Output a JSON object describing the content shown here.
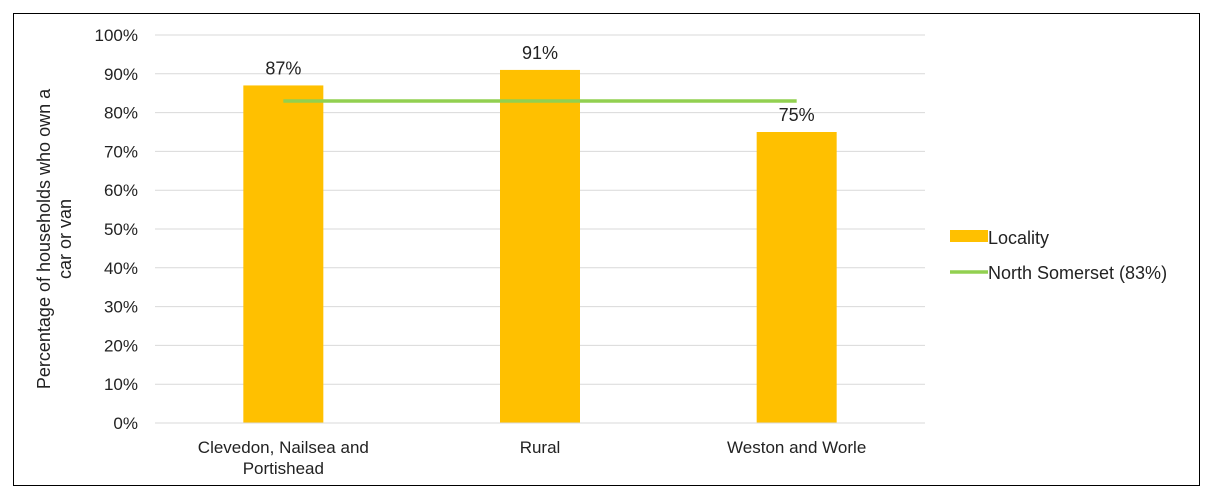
{
  "chart_data": {
    "type": "bar",
    "categories": [
      "Clevedon, Nailsea and Portishead",
      "Rural",
      "Weston and Worle"
    ],
    "category_lines": [
      [
        "Clevedon, Nailsea and",
        "Portishead"
      ],
      [
        "Rural"
      ],
      [
        "Weston and Worle"
      ]
    ],
    "series": [
      {
        "name": "Locality",
        "type": "bar",
        "values": [
          87,
          91,
          75
        ],
        "labels": [
          "87%",
          "91%",
          "75%"
        ],
        "color": "#FFC000"
      },
      {
        "name": "North Somerset (83%)",
        "type": "line",
        "values": [
          83,
          83,
          83
        ],
        "color": "#92D050"
      }
    ],
    "ylabel_lines": [
      "Percentage of households who own a",
      "car or van"
    ],
    "ylim": [
      0,
      100
    ],
    "yticks": [
      0,
      10,
      20,
      30,
      40,
      50,
      60,
      70,
      80,
      90,
      100
    ],
    "ytick_labels": [
      "0%",
      "10%",
      "20%",
      "30%",
      "40%",
      "50%",
      "60%",
      "70%",
      "80%",
      "90%",
      "100%"
    ],
    "grid": true,
    "legend_position": "right"
  }
}
